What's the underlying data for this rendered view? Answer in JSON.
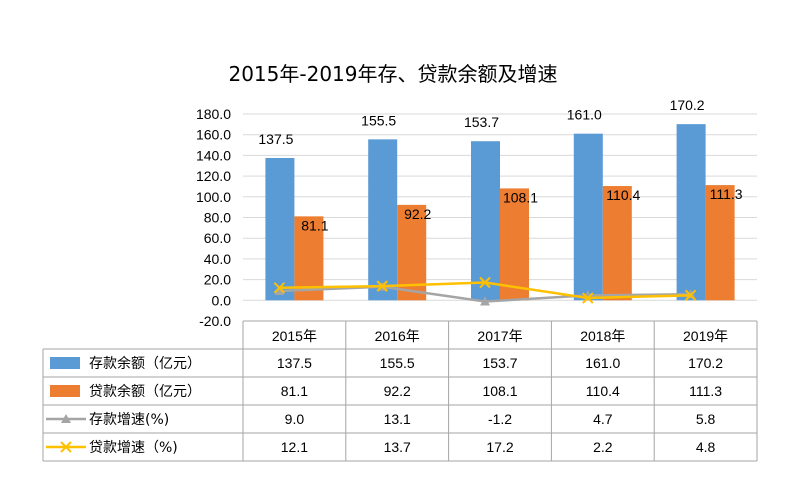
{
  "chart_data": {
    "type": "bar",
    "title": "2015年-2019年存、贷款余额及增速",
    "categories": [
      "2015年",
      "2016年",
      "2017年",
      "2018年",
      "2019年"
    ],
    "ylim": [
      -20,
      180
    ],
    "y_ticks": [
      "180.0",
      "160.0",
      "140.0",
      "120.0",
      "100.0",
      "80.0",
      "60.0",
      "40.0",
      "20.0",
      "0.0",
      "-20.0"
    ],
    "grid": true,
    "series": [
      {
        "name": "存款余额（亿元）",
        "kind": "bar",
        "color": "#5b9bd5",
        "values": [
          137.5,
          155.5,
          153.7,
          161.0,
          170.2
        ],
        "labels": [
          "137.5",
          "155.5",
          "153.7",
          "161.0",
          "170.2"
        ]
      },
      {
        "name": "贷款余额（亿元）",
        "kind": "bar",
        "color": "#ed7d31",
        "values": [
          81.1,
          92.2,
          108.1,
          110.4,
          111.3
        ],
        "labels": [
          "81.1",
          "92.2",
          "108.1",
          "110.4",
          "111.3"
        ]
      },
      {
        "name": "存款增速(%)",
        "kind": "line",
        "marker": "triangle",
        "color": "#a5a5a5",
        "values": [
          9.0,
          13.1,
          -1.2,
          4.7,
          5.8
        ],
        "labels": [
          "9.0",
          "13.1",
          "-1.2",
          "4.7",
          "5.8"
        ]
      },
      {
        "name": "贷款增速（%)",
        "kind": "line",
        "marker": "x",
        "color": "#ffc000",
        "values": [
          12.1,
          13.7,
          17.2,
          2.2,
          4.8
        ],
        "labels": [
          "12.1",
          "13.7",
          "17.2",
          "2.2",
          "4.8"
        ]
      }
    ],
    "data_table": true
  }
}
